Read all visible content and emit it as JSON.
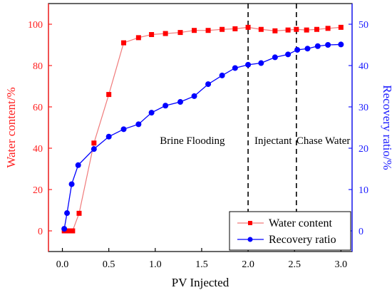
{
  "colors": {
    "left_axis": "#ff2020",
    "right_axis": "#1a1aff",
    "water_series": "#ff0000",
    "water_line": "#f07a7a",
    "recovery_series": "#0000ff",
    "frame": "#000000"
  },
  "chart_data": {
    "type": "line",
    "xlabel": "PV Injected",
    "ylabel_left": "Water content/%",
    "ylabel_right": "Recovery ratio/%",
    "xlim": [
      -0.15,
      3.12
    ],
    "ylim_left": [
      -10,
      110
    ],
    "ylim_right": [
      -5,
      55
    ],
    "x_ticks": [
      0.0,
      0.5,
      1.0,
      1.5,
      2.0,
      2.5,
      3.0
    ],
    "x_tick_labels": [
      "0.0",
      "0.5",
      "1.0",
      "1.5",
      "2.0",
      "2.5",
      "3.0"
    ],
    "y_left_ticks": [
      0,
      20,
      40,
      60,
      80,
      100
    ],
    "y_left_tick_labels": [
      "0",
      "20",
      "40",
      "60",
      "80",
      "100"
    ],
    "y_right_ticks": [
      0,
      10,
      20,
      30,
      40,
      50
    ],
    "y_right_tick_labels": [
      "0",
      "10",
      "20",
      "30",
      "40",
      "50"
    ],
    "series": [
      {
        "name": "Water content",
        "axis": "left",
        "marker": "square",
        "x": [
          0.02,
          0.06,
          0.11,
          0.18,
          0.34,
          0.5,
          0.66,
          0.82,
          0.96,
          1.11,
          1.27,
          1.42,
          1.57,
          1.72,
          1.86,
          2.0,
          2.14,
          2.29,
          2.43,
          2.52,
          2.63,
          2.74,
          2.86,
          3.0
        ],
        "y": [
          0,
          0,
          0,
          8.5,
          42.5,
          66,
          91,
          93.5,
          95,
          95.5,
          96,
          97,
          97,
          97.5,
          97.8,
          98.5,
          97.5,
          96.8,
          97.2,
          97.5,
          97.2,
          97.5,
          98,
          98.5
        ]
      },
      {
        "name": "Recovery ratio",
        "axis": "right",
        "marker": "circle",
        "x": [
          0.02,
          0.05,
          0.1,
          0.17,
          0.34,
          0.5,
          0.66,
          0.82,
          0.96,
          1.11,
          1.27,
          1.42,
          1.57,
          1.72,
          1.86,
          2.0,
          2.14,
          2.29,
          2.43,
          2.53,
          2.64,
          2.75,
          2.86,
          3.0
        ],
        "y": [
          0.5,
          4.3,
          11.3,
          15.9,
          19.8,
          22.8,
          24.6,
          25.8,
          28.6,
          30.3,
          31.2,
          32.6,
          35.5,
          37.6,
          39.4,
          40.2,
          40.6,
          42,
          42.7,
          43.8,
          44.1,
          44.7,
          45,
          45.1
        ]
      }
    ],
    "vertical_lines": [
      2.0,
      2.52
    ],
    "annotations": [
      {
        "text": "Brine Flooding",
        "x": 1.4
      },
      {
        "text": "Injectant",
        "x": 2.27
      },
      {
        "text": "Chase Water",
        "x": 2.81
      }
    ],
    "legend": {
      "position": "bottom-right",
      "entries": [
        "Water content",
        "Recovery ratio"
      ]
    },
    "grid": false
  }
}
